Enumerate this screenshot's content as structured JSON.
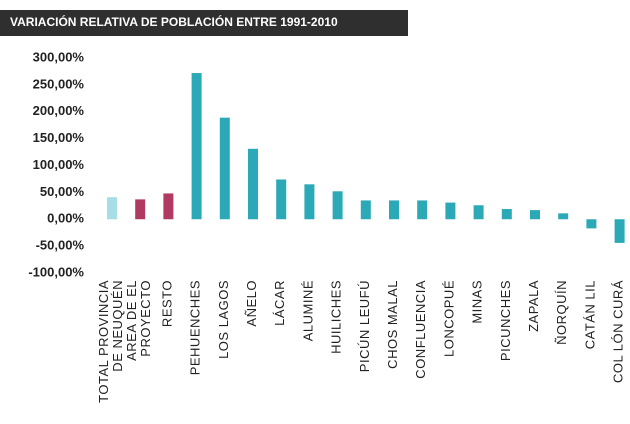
{
  "chart_data": {
    "type": "bar",
    "title": "VARIACIÓN RELATIVA DE POBLACIÓN ENTRE 1991-2010",
    "categories": [
      "TOTAL PROVINCIA\nDE NEUQUÉN",
      "AREA DE EL\nPROYECTO",
      "RESTO",
      "PEHUENCHES",
      "LOS LAGOS",
      "AÑELO",
      "LÁCAR",
      "ALUMINÉ",
      "HUILICHES",
      "PICÚN LEUFÚ",
      "CHOS MALAL",
      "CONFLUENCIA",
      "LONCOPUÉ",
      "MINAS",
      "PICUNCHES",
      "ZAPALA",
      "ÑORQUÍN",
      "CATÁN LIL",
      "COL LÓN CURÁ"
    ],
    "values": [
      41,
      37,
      48,
      272,
      189,
      131,
      74,
      65,
      52,
      35,
      35,
      35,
      31,
      26,
      19,
      17,
      11,
      -17,
      -44
    ],
    "colors": [
      "#a6dde6",
      "#b13a63",
      "#b13a63",
      "#2ba9b6",
      "#2ba9b6",
      "#2ba9b6",
      "#2ba9b6",
      "#2ba9b6",
      "#2ba9b6",
      "#2ba9b6",
      "#2ba9b6",
      "#2ba9b6",
      "#2ba9b6",
      "#2ba9b6",
      "#2ba9b6",
      "#2ba9b6",
      "#2ba9b6",
      "#2ba9b6",
      "#2ba9b6"
    ],
    "ylim": [
      -100,
      300
    ],
    "yticks": [
      {
        "value": -100,
        "label": "-100,00%"
      },
      {
        "value": -50,
        "label": "-50,00%"
      },
      {
        "value": 0,
        "label": "0,00%"
      },
      {
        "value": 50,
        "label": "50,00%"
      },
      {
        "value": 100,
        "label": "100,00%"
      },
      {
        "value": 150,
        "label": "150,00%"
      },
      {
        "value": 200,
        "label": "200,00%"
      },
      {
        "value": 250,
        "label": "250,00%"
      },
      {
        "value": 300,
        "label": "300,00%"
      }
    ],
    "grid": false
  }
}
